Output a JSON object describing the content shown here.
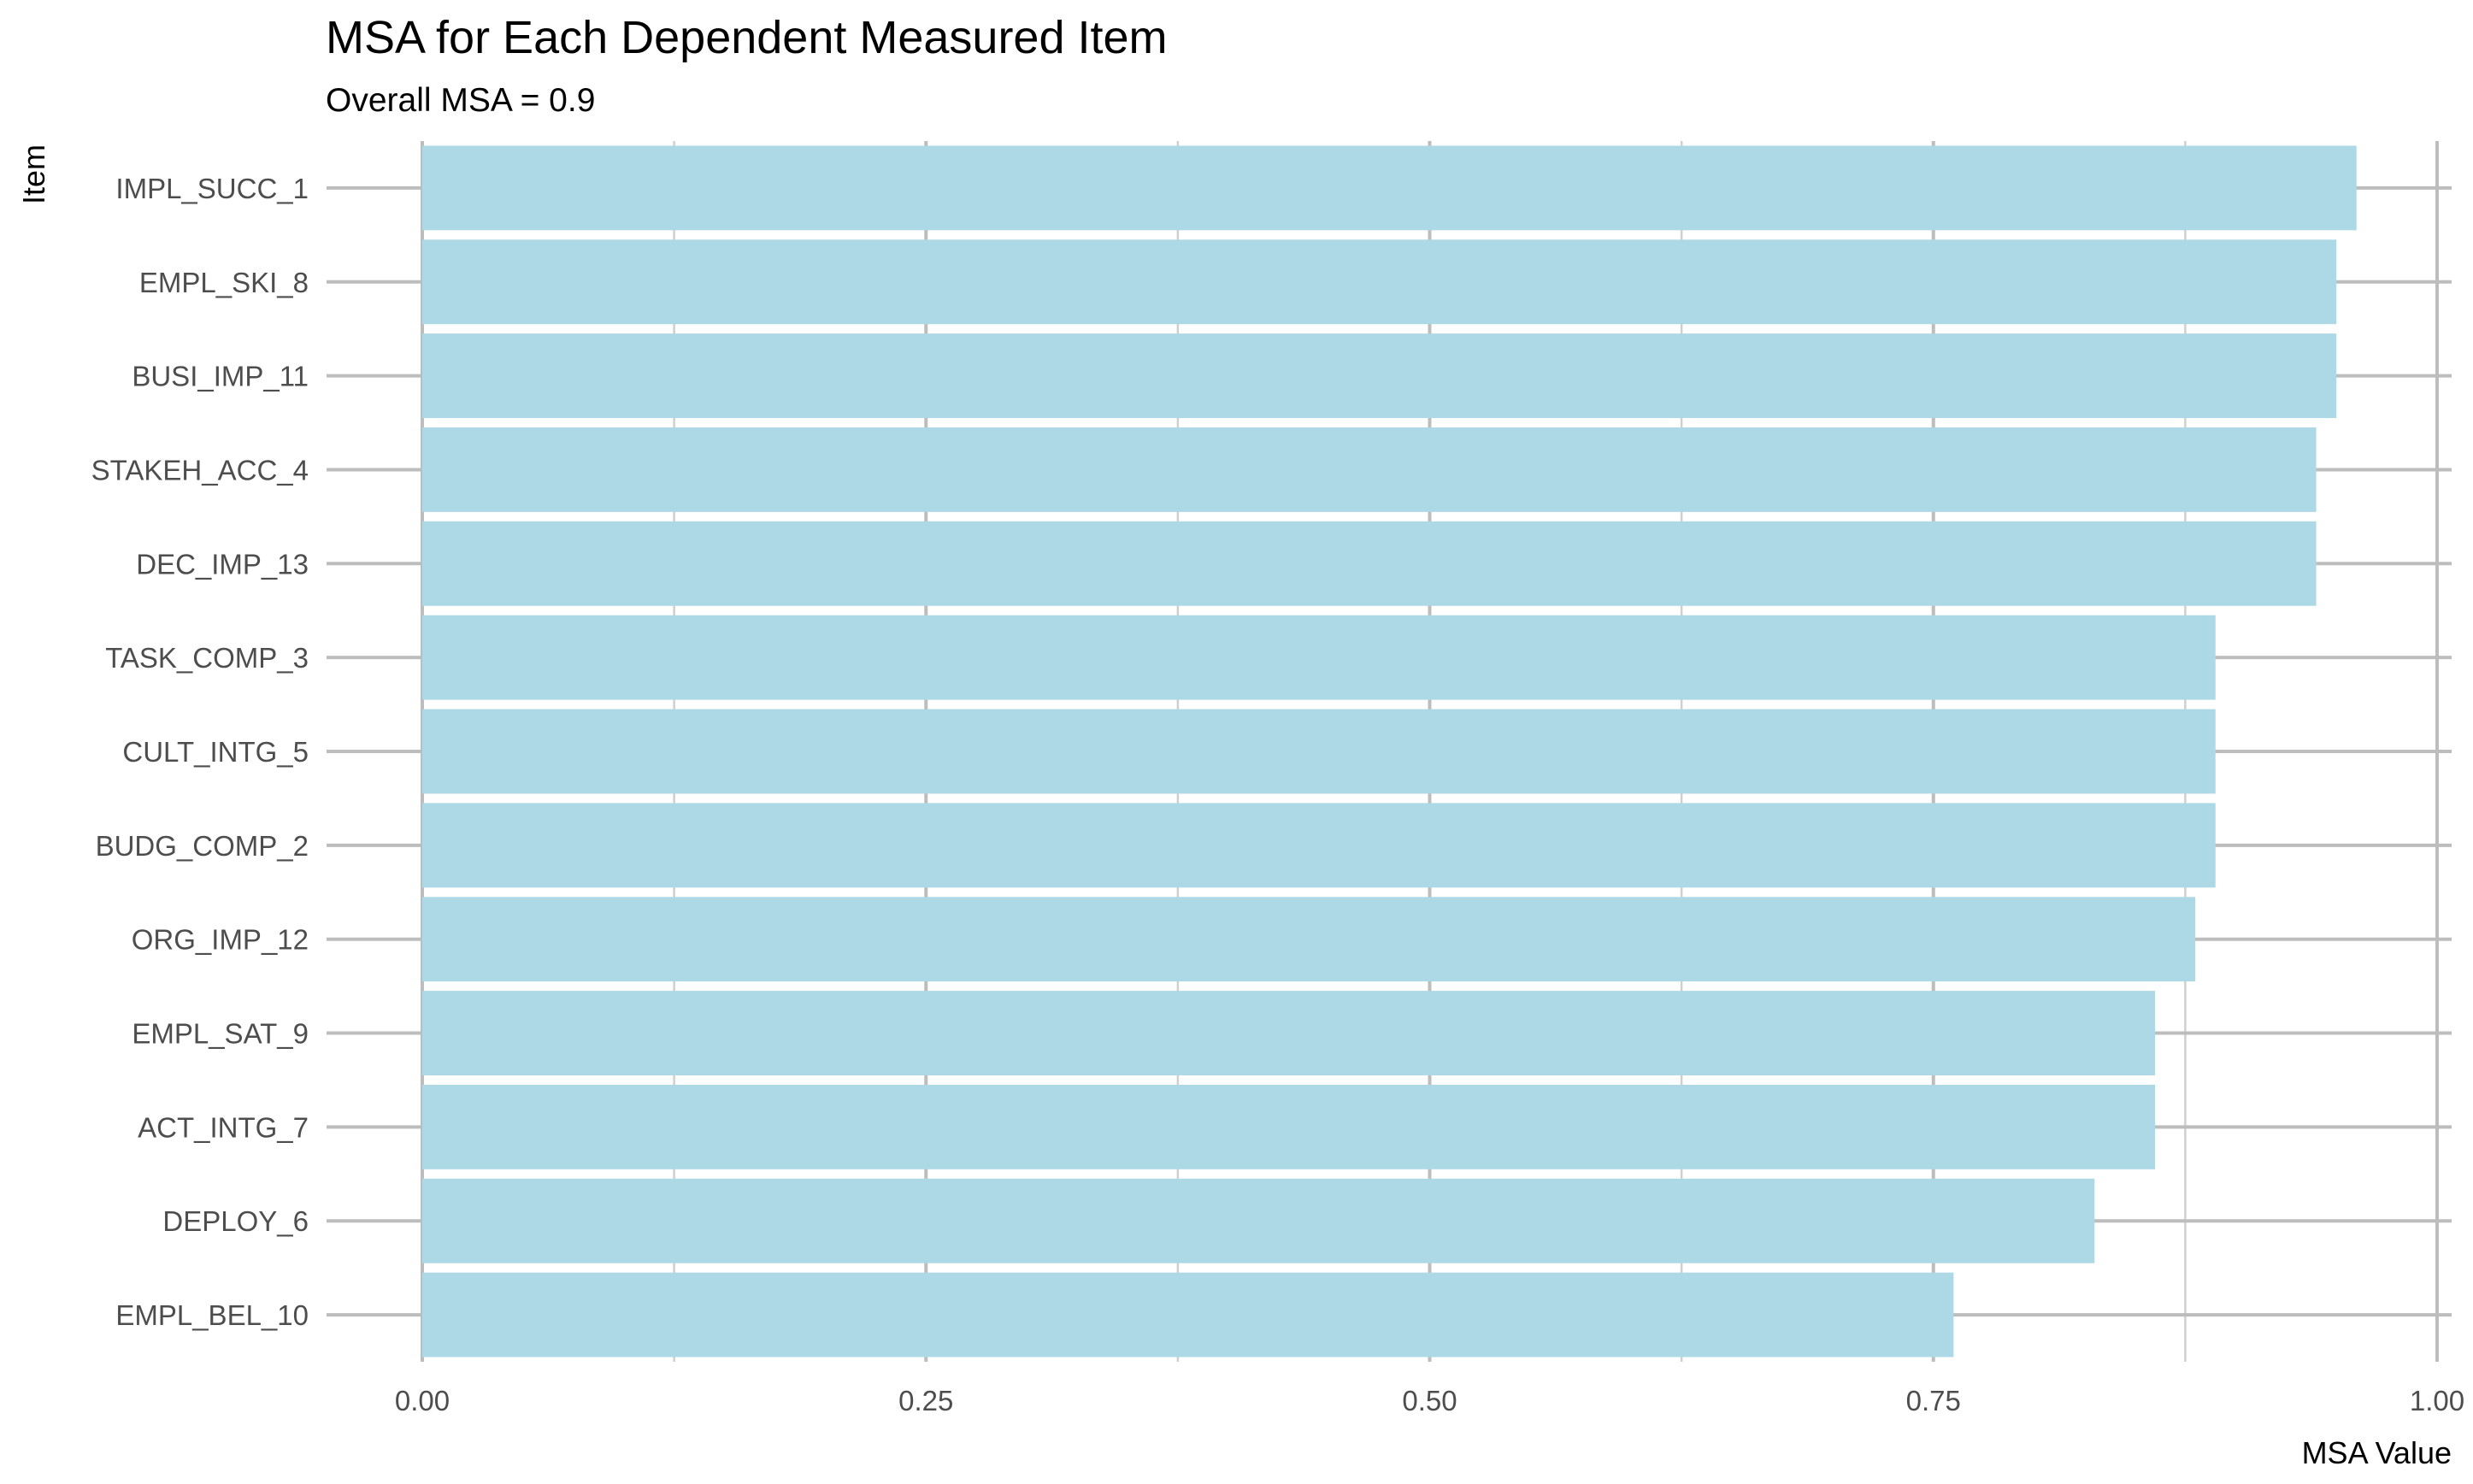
{
  "chart_data": {
    "type": "bar",
    "orientation": "horizontal",
    "title": "MSA for Each Dependent Measured Item",
    "subtitle": "Overall MSA =  0.9",
    "xlabel": "MSA Value",
    "ylabel": "Item",
    "xlim": [
      0,
      1
    ],
    "x_ticks": [
      0,
      0.25,
      0.5,
      0.75,
      1
    ],
    "x_tick_labels": [
      "0.00",
      "0.25",
      "0.50",
      "0.75",
      "1.00"
    ],
    "grid": true,
    "legend": "none",
    "bar_color": "#add8e6",
    "categories": [
      "IMPL_SUCC_1",
      "EMPL_SKI_8",
      "BUSI_IMP_11",
      "STAKEH_ACC_4",
      "DEC_IMP_13",
      "TASK_COMP_3",
      "CULT_INTG_5",
      "BUDG_COMP_2",
      "ORG_IMP_12",
      "EMPL_SAT_9",
      "ACT_INTG_7",
      "DEPLOY_6",
      "EMPL_BEL_10"
    ],
    "values": [
      0.96,
      0.95,
      0.95,
      0.94,
      0.94,
      0.89,
      0.89,
      0.89,
      0.88,
      0.86,
      0.86,
      0.83,
      0.76
    ]
  }
}
